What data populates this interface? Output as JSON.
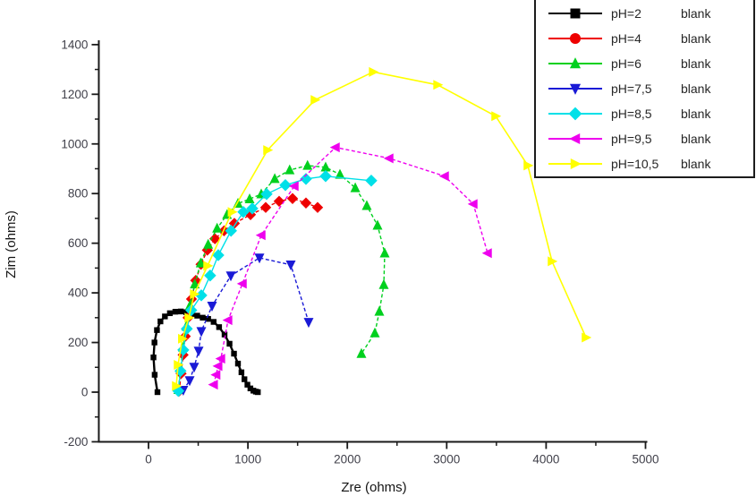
{
  "figure": {
    "background": "#ffffff",
    "axis_color": "#1a1a1a"
  },
  "chart_data": {
    "type": "line",
    "title": "",
    "xlabel": "Zre (ohms)",
    "ylabel": "Zim (ohms)",
    "xlim": [
      -500,
      5000
    ],
    "ylim": [
      -200,
      1400
    ],
    "x_ticks": [
      0,
      1000,
      2000,
      3000,
      4000,
      5000
    ],
    "x_minor_ticks": [
      500,
      1500,
      2500,
      3500,
      4500
    ],
    "y_ticks": [
      -200,
      0,
      200,
      400,
      600,
      800,
      1000,
      1200,
      1400
    ],
    "y_minor_ticks": [
      -100,
      100,
      300,
      500,
      700,
      900,
      1100,
      1300
    ],
    "grid": false,
    "legend_position": "top-right",
    "legend_suffix": "blank",
    "series": [
      {
        "label": "pH=2",
        "suffix": "blank",
        "color": "#000000",
        "marker": "square",
        "legend_marker": "square",
        "line_style": "solid",
        "line_width": 2.4,
        "marker_size": 3.2,
        "points": [
          [
            90,
            0
          ],
          [
            62,
            70
          ],
          [
            50,
            140
          ],
          [
            60,
            200
          ],
          [
            85,
            250
          ],
          [
            120,
            285
          ],
          [
            165,
            305
          ],
          [
            215,
            318
          ],
          [
            270,
            324
          ],
          [
            325,
            325
          ],
          [
            380,
            322
          ],
          [
            435,
            315
          ],
          [
            490,
            308
          ],
          [
            545,
            300
          ],
          [
            600,
            295
          ],
          [
            655,
            283
          ],
          [
            710,
            262
          ],
          [
            765,
            232
          ],
          [
            815,
            195
          ],
          [
            860,
            155
          ],
          [
            900,
            115
          ],
          [
            935,
            80
          ],
          [
            965,
            52
          ],
          [
            995,
            30
          ],
          [
            1025,
            15
          ],
          [
            1055,
            6
          ],
          [
            1080,
            2
          ],
          [
            1100,
            0
          ]
        ]
      },
      {
        "label": "pH=4",
        "suffix": "blank",
        "color": "#ee0000",
        "marker": "diamond",
        "legend_marker": "circle",
        "line_style": "dashed",
        "line_width": 1.4,
        "marker_size": 4.6,
        "points": [
          [
            310,
            5
          ],
          [
            328,
            75
          ],
          [
            348,
            150
          ],
          [
            370,
            225
          ],
          [
            398,
            300
          ],
          [
            432,
            375
          ],
          [
            475,
            450
          ],
          [
            528,
            515
          ],
          [
            592,
            572
          ],
          [
            668,
            618
          ],
          [
            760,
            650
          ],
          [
            864,
            680
          ],
          [
            1026,
            715
          ],
          [
            1179,
            744
          ],
          [
            1314,
            769
          ],
          [
            1449,
            780
          ],
          [
            1584,
            762
          ],
          [
            1701,
            744
          ]
        ]
      },
      {
        "label": "pH=6",
        "suffix": "blank",
        "color": "#00d01e",
        "marker": "triangle-up",
        "legend_marker": "triangle-up",
        "line_style": "dashed",
        "line_width": 1.4,
        "marker_size": 5,
        "points": [
          [
            300,
            10
          ],
          [
            322,
            95
          ],
          [
            348,
            180
          ],
          [
            380,
            265
          ],
          [
            418,
            350
          ],
          [
            465,
            435
          ],
          [
            525,
            520
          ],
          [
            600,
            595
          ],
          [
            690,
            660
          ],
          [
            790,
            715
          ],
          [
            900,
            760
          ],
          [
            1017,
            778
          ],
          [
            1134,
            798
          ],
          [
            1270,
            860
          ],
          [
            1420,
            895
          ],
          [
            1600,
            913
          ],
          [
            1782,
            906
          ],
          [
            1926,
            877
          ],
          [
            2080,
            823
          ],
          [
            2196,
            751
          ],
          [
            2304,
            672
          ],
          [
            2376,
            560
          ],
          [
            2367,
            433
          ],
          [
            2322,
            325
          ],
          [
            2277,
            238
          ],
          [
            2142,
            155
          ]
        ]
      },
      {
        "label": "pH=7,5",
        "suffix": "blank",
        "color": "#1a1ad6",
        "marker": "triangle-down",
        "legend_marker": "triangle-down",
        "line_style": "dashed",
        "line_width": 1.4,
        "marker_size": 5,
        "points": [
          [
            350,
            8
          ],
          [
            414,
            47
          ],
          [
            459,
            101
          ],
          [
            504,
            166
          ],
          [
            531,
            245
          ],
          [
            639,
            347
          ],
          [
            828,
            469
          ],
          [
            1116,
            541
          ],
          [
            1431,
            513
          ],
          [
            1611,
            282
          ]
        ]
      },
      {
        "label": "pH=8,5",
        "suffix": "blank",
        "color": "#00e0e8",
        "marker": "diamond",
        "legend_marker": "diamond",
        "line_style": "solid",
        "line_width": 1.4,
        "marker_size": 5,
        "points": [
          [
            300,
            5
          ],
          [
            322,
            85
          ],
          [
            350,
            170
          ],
          [
            385,
            255
          ],
          [
            430,
            330
          ],
          [
            531,
            390
          ],
          [
            620,
            470
          ],
          [
            702,
            552
          ],
          [
            830,
            650
          ],
          [
            954,
            726
          ],
          [
            1044,
            740
          ],
          [
            1188,
            798
          ],
          [
            1377,
            834
          ],
          [
            1584,
            859
          ],
          [
            1782,
            870
          ],
          [
            2241,
            852
          ]
        ]
      },
      {
        "label": "pH=9,5",
        "suffix": "blank",
        "color": "#ee00ee",
        "marker": "triangle-left",
        "legend_marker": "triangle-left",
        "line_style": "dashed",
        "line_width": 1.4,
        "marker_size": 5,
        "points": [
          [
            655,
            30
          ],
          [
            680,
            70
          ],
          [
            700,
            105
          ],
          [
            728,
            135
          ],
          [
            800,
            290
          ],
          [
            945,
            437
          ],
          [
            1134,
            632
          ],
          [
            1467,
            830
          ],
          [
            1881,
            986
          ],
          [
            2421,
            942
          ],
          [
            2979,
            870
          ],
          [
            3267,
            758
          ],
          [
            3411,
            560
          ]
        ]
      },
      {
        "label": "pH=10,5",
        "suffix": "blank",
        "color": "#ffff00",
        "marker": "triangle-right",
        "legend_marker": "triangle-right",
        "line_style": "solid",
        "line_width": 1.6,
        "marker_size": 5,
        "points": [
          [
            279,
            25
          ],
          [
            297,
            110
          ],
          [
            340,
            215
          ],
          [
            405,
            300
          ],
          [
            460,
            395
          ],
          [
            594,
            509
          ],
          [
            840,
            726
          ],
          [
            1197,
            975
          ],
          [
            1674,
            1177
          ],
          [
            2260,
            1290
          ],
          [
            2908,
            1238
          ],
          [
            3492,
            1112
          ],
          [
            3816,
            913
          ],
          [
            4059,
            527
          ],
          [
            4401,
            220
          ]
        ]
      }
    ]
  }
}
